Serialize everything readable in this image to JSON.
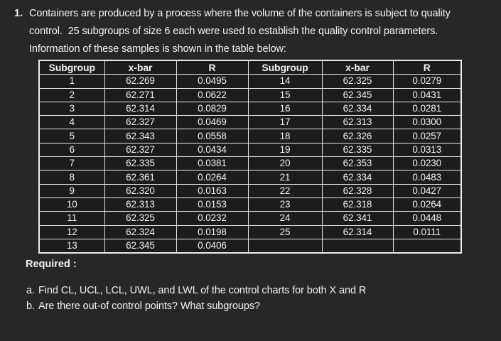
{
  "page": {
    "background_color": "#272727",
    "cell_background_color": "#1c1c1c",
    "border_color": "#e6e6e6",
    "text_color": "#f2f2f2"
  },
  "problem": {
    "number": "1.",
    "intro_lines": [
      "Containers are produced by a process where the volume of the containers is subject to quality",
      "control.  25 subgroups of size 6 each were used to establish the quality control parameters.",
      "Information of these samples is shown in the table below:"
    ]
  },
  "table": {
    "columns": [
      "Subgroup",
      "x-bar",
      "R",
      "Subgroup",
      "x-bar",
      "R"
    ],
    "rows": [
      [
        "1",
        "62.269",
        "0.0495",
        "14",
        "62.325",
        "0.0279"
      ],
      [
        "2",
        "62.271",
        "0.0622",
        "15",
        "62.345",
        "0.0431"
      ],
      [
        "3",
        "62.314",
        "0.0829",
        "16",
        "62.334",
        "0.0281"
      ],
      [
        "4",
        "62.327",
        "0.0469",
        "17",
        "62.313",
        "0.0300"
      ],
      [
        "5",
        "62.343",
        "0.0558",
        "18",
        "62.326",
        "0.0257"
      ],
      [
        "6",
        "62.327",
        "0.0434",
        "19",
        "62.335",
        "0.0313"
      ],
      [
        "7",
        "62.335",
        "0.0381",
        "20",
        "62.353",
        "0.0230"
      ],
      [
        "8",
        "62.361",
        "0.0264",
        "21",
        "62.334",
        "0.0483"
      ],
      [
        "9",
        "62.320",
        "0.0163",
        "22",
        "62.328",
        "0.0427"
      ],
      [
        "10",
        "62.313",
        "0.0153",
        "23",
        "62.318",
        "0.0264"
      ],
      [
        "11",
        "62.325",
        "0.0232",
        "24",
        "62.341",
        "0.0448"
      ],
      [
        "12",
        "62.324",
        "0.0198",
        "25",
        "62.314",
        "0.0111"
      ],
      [
        "13",
        "62.345",
        "0.0406",
        "",
        "",
        ""
      ]
    ]
  },
  "required": {
    "label": "Required :",
    "items": [
      {
        "marker": "a.",
        "text": "Find CL, UCL, LCL, UWL, and LWL of the control charts for both X and R"
      },
      {
        "marker": "b.",
        "text": "Are there out-of control points? What subgroups?"
      }
    ]
  }
}
